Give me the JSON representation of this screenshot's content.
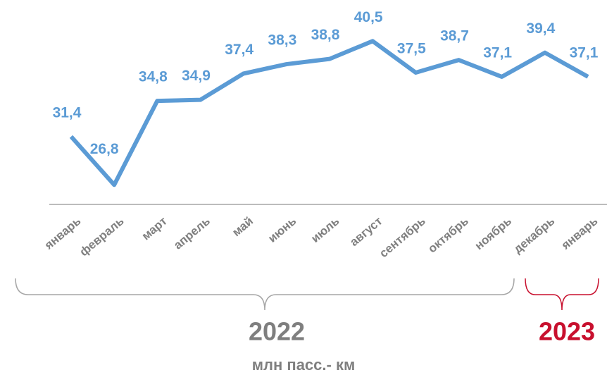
{
  "chart_data": {
    "type": "line",
    "categories": [
      "январь",
      "февраль",
      "март",
      "апрель",
      "май",
      "июнь",
      "июль",
      "август",
      "сентябрь",
      "октябрь",
      "ноябрь",
      "декабрь",
      "январь"
    ],
    "values": [
      31.4,
      26.8,
      34.8,
      34.9,
      37.4,
      38.3,
      38.8,
      40.5,
      37.5,
      38.7,
      37.1,
      39.4,
      37.1
    ],
    "value_labels": [
      "31,4",
      "26,8",
      "34,8",
      "34,9",
      "37,4",
      "38,3",
      "38,8",
      "40,5",
      "37,5",
      "38,7",
      "37,1",
      "39,4",
      "37,1"
    ],
    "color": "#5b9bd5",
    "ylim": [
      25,
      42
    ],
    "year_labels": [
      "2022",
      "2023"
    ],
    "unit": "млн пасс.- км"
  }
}
